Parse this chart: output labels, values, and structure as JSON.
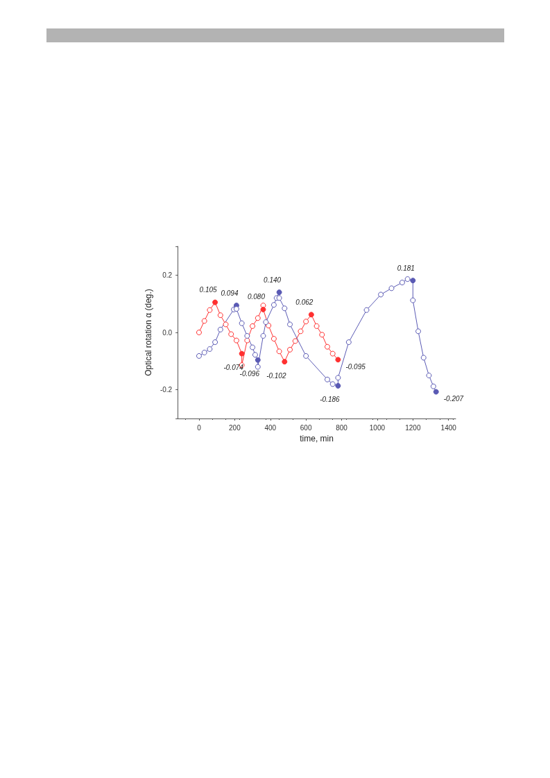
{
  "chart_data": {
    "type": "line",
    "xlabel": "time, min",
    "ylabel": "Optical rotation α (deg.)",
    "xlim": [
      -120,
      1440
    ],
    "xticks": [
      0,
      200,
      400,
      600,
      800,
      1000,
      1200,
      1400
    ],
    "ylim": [
      -0.3,
      0.3
    ],
    "yticks": [
      {
        "value": -0.3,
        "label": null
      },
      {
        "value": -0.2,
        "label": "-0.2"
      },
      {
        "value": 0,
        "label": "0.0"
      },
      {
        "value": 0.2,
        "label": "0.2"
      },
      {
        "value": 0.3,
        "label": null
      }
    ],
    "grid": false,
    "marker": "circle",
    "line_style": "solid",
    "series": [
      {
        "color": "#ff3030",
        "x": [
          0,
          30,
          60,
          90,
          120,
          150,
          180,
          210,
          240,
          240,
          270,
          300,
          330,
          360,
          360,
          390,
          420,
          450,
          480,
          510,
          540,
          570,
          600,
          630,
          660,
          690,
          720,
          750,
          780
        ],
        "values": [
          0,
          0.04,
          0.078,
          0.105,
          0.06,
          0.028,
          -0.006,
          -0.028,
          -0.074,
          -0.114,
          -0.028,
          0.022,
          0.05,
          0.094,
          0.08,
          0.024,
          -0.022,
          -0.066,
          -0.102,
          -0.06,
          -0.03,
          0.004,
          0.038,
          0.062,
          0.022,
          -0.008,
          -0.05,
          -0.074,
          -0.095
        ],
        "value_labels": [
          null,
          null,
          null,
          "0.105",
          null,
          null,
          null,
          null,
          "-0.074",
          null,
          null,
          null,
          null,
          null,
          "0.080",
          null,
          null,
          null,
          "-0.102",
          null,
          null,
          null,
          null,
          "0.062",
          null,
          null,
          null,
          null,
          "-0.095"
        ]
      },
      {
        "color": "#5a5ab4",
        "x": [
          0,
          30,
          60,
          90,
          120,
          195,
          210,
          210,
          240,
          270,
          300,
          315,
          330,
          330,
          360,
          375,
          420,
          435,
          450,
          450,
          480,
          510,
          600,
          720,
          750,
          780,
          780,
          840,
          940,
          1020,
          1080,
          1140,
          1170,
          1200,
          1200,
          1230,
          1260,
          1290,
          1315,
          1330
        ],
        "values": [
          -0.082,
          -0.07,
          -0.058,
          -0.034,
          0.01,
          0.08,
          0.094,
          0.082,
          0.032,
          -0.012,
          -0.052,
          -0.078,
          -0.096,
          -0.12,
          -0.012,
          0.036,
          0.096,
          0.12,
          0.14,
          0.12,
          0.084,
          0.028,
          -0.082,
          -0.164,
          -0.18,
          -0.186,
          -0.158,
          -0.034,
          0.078,
          0.132,
          0.154,
          0.174,
          0.186,
          0.181,
          0.112,
          0.004,
          -0.088,
          -0.15,
          -0.188,
          -0.207
        ],
        "value_labels": [
          null,
          null,
          null,
          null,
          null,
          null,
          "0.094",
          null,
          null,
          null,
          null,
          null,
          "-0.096",
          null,
          null,
          null,
          null,
          null,
          "0.140",
          null,
          null,
          null,
          null,
          null,
          null,
          "-0.186",
          null,
          null,
          null,
          null,
          null,
          null,
          null,
          "0.181",
          null,
          null,
          null,
          null,
          null,
          "-0.207"
        ]
      }
    ]
  }
}
